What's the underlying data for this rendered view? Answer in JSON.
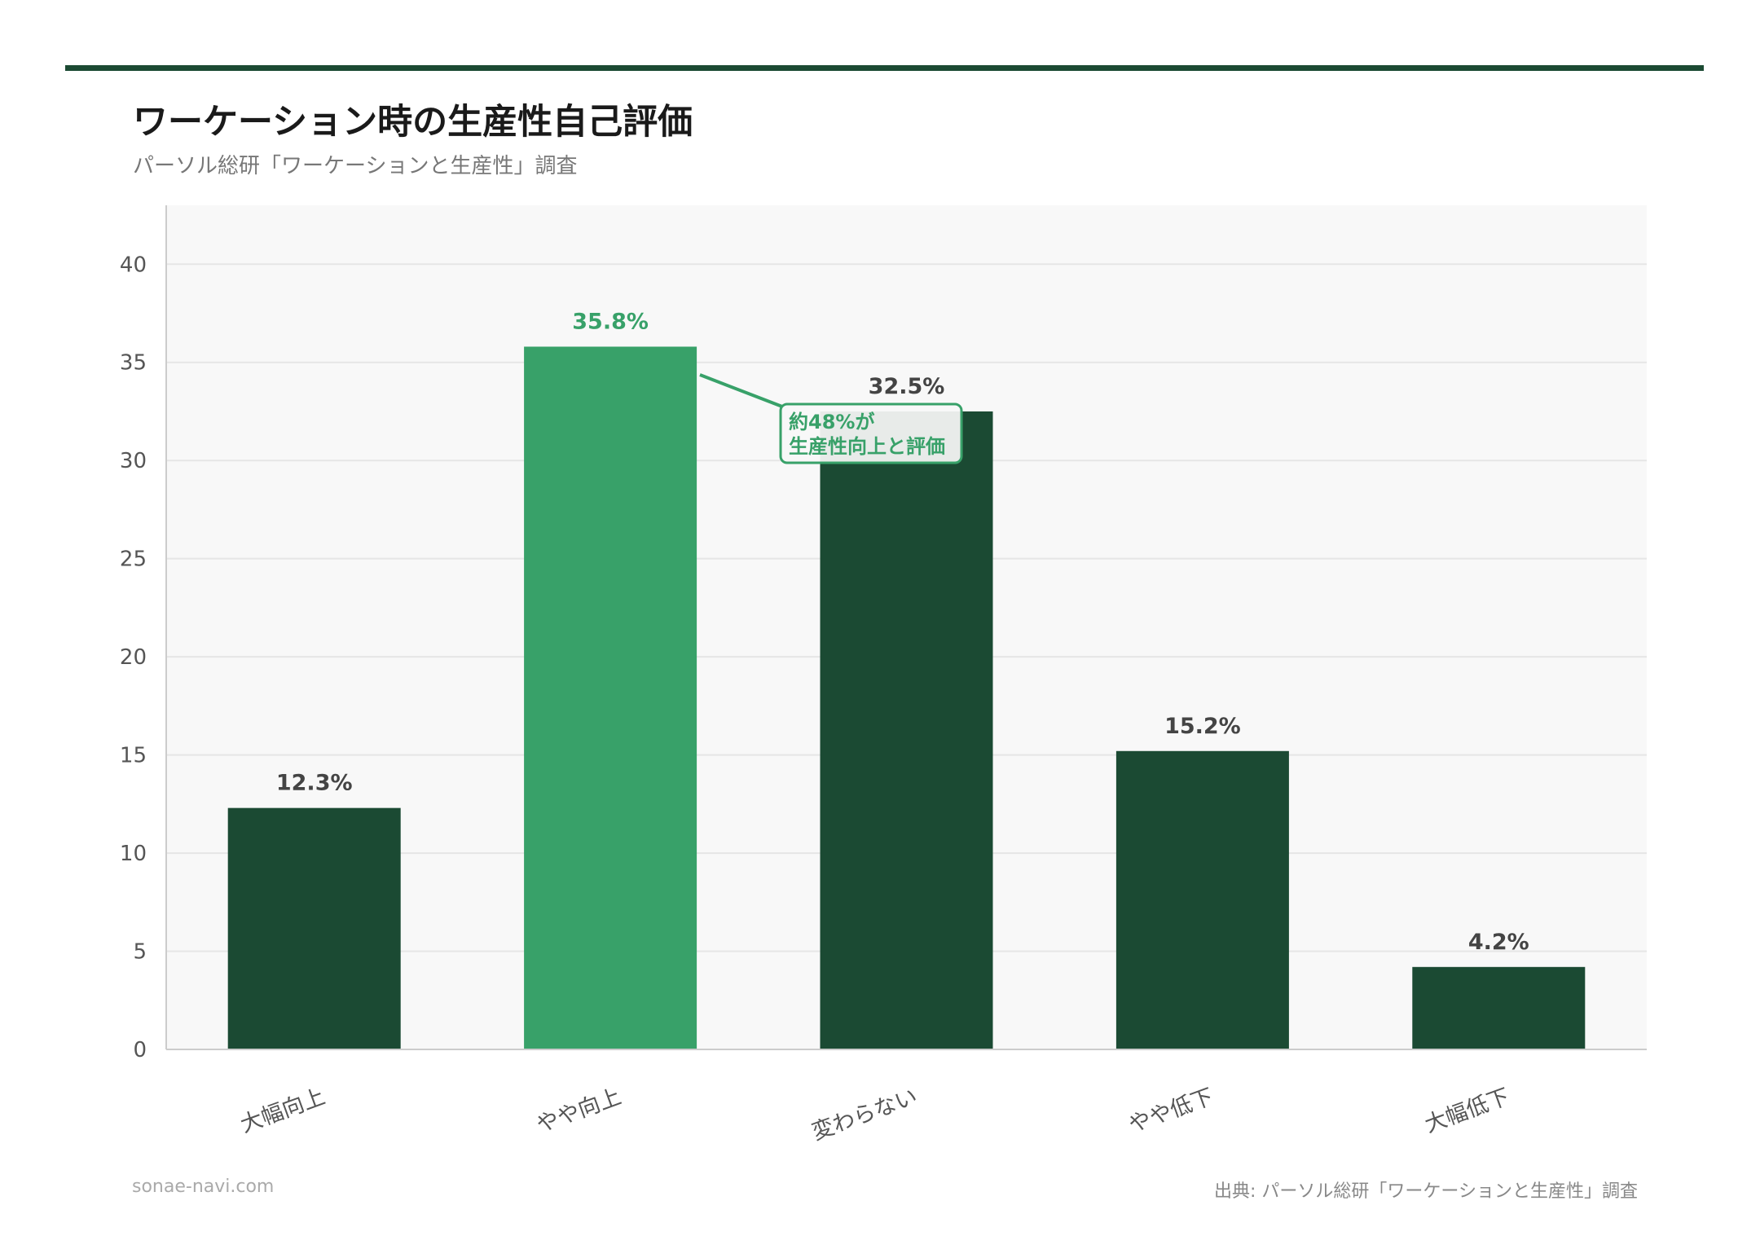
{
  "header": {
    "title": "ワーケーション時の生産性自己評価",
    "subtitle": "パーソル総研「ワーケーションと生産性」調査"
  },
  "chart_data": {
    "type": "bar",
    "categories": [
      "大幅向上",
      "やや向上",
      "変わらない",
      "やや低下",
      "大幅低下"
    ],
    "values": [
      12.3,
      35.8,
      32.5,
      15.2,
      4.2
    ],
    "data_labels": [
      "12.3%",
      "35.8%",
      "32.5%",
      "15.2%",
      "4.2%"
    ],
    "highlight_index": 1,
    "ylim": [
      0,
      43
    ],
    "yticks": [
      0,
      5,
      10,
      15,
      20,
      25,
      30,
      35,
      40
    ],
    "grid": true,
    "annotation": {
      "line1": "約48%が",
      "line2": "生産性向上と評価"
    },
    "colors": {
      "bar": "#1b4a33",
      "highlight": "#38a169",
      "plot_bg": "#f8f8f8",
      "grid": "#e6e6e6"
    }
  },
  "footer": {
    "site": "sonae-navi.com",
    "source": "出典: パーソル総研「ワーケーションと生産性」調査"
  }
}
